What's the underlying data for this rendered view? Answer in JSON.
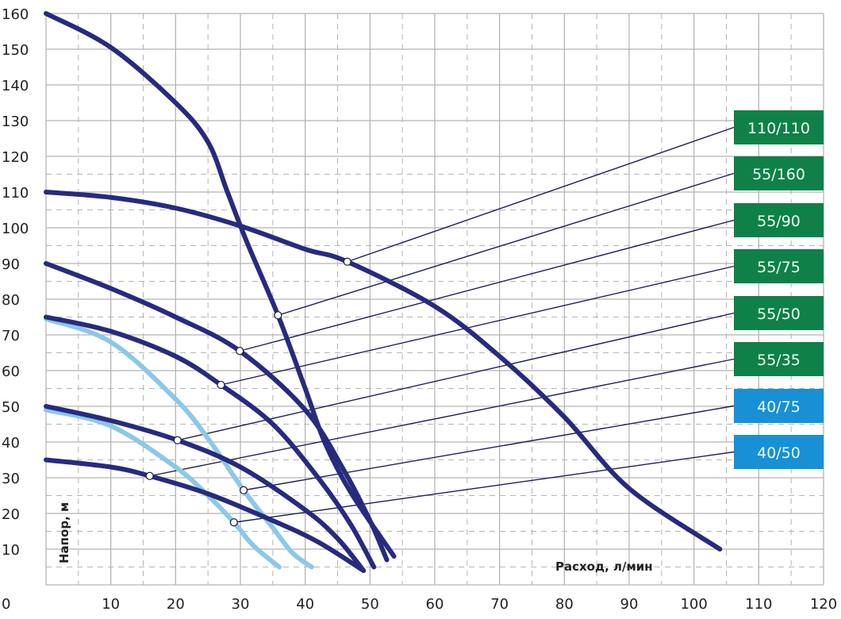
{
  "chart_data": {
    "type": "line",
    "title": "",
    "xlabel": "Расход, л/мин",
    "ylabel": "Напор, м",
    "xlim": [
      0,
      120
    ],
    "ylim": [
      0,
      160
    ],
    "x_ticks": [
      10,
      20,
      30,
      40,
      50,
      60,
      70,
      80,
      90,
      100,
      110,
      120
    ],
    "y_ticks": [
      10,
      20,
      30,
      40,
      50,
      60,
      70,
      80,
      90,
      100,
      110,
      120,
      130,
      140,
      150,
      160
    ],
    "origin_label": "0",
    "grid": true,
    "colors": {
      "dark_curve": "#272b80",
      "light_curve": "#8cc8e8",
      "green_label": "#0f8148",
      "blue_label": "#1790d6",
      "grid": "#b5b5b5"
    },
    "series": [
      {
        "name": "110/110",
        "style": "dark",
        "label_color": "green",
        "marker": [
          46.5,
          90.5
        ],
        "points": [
          [
            0,
            110
          ],
          [
            10,
            108.5
          ],
          [
            20,
            105.5
          ],
          [
            30,
            100.5
          ],
          [
            40,
            94
          ],
          [
            46.5,
            90.5
          ],
          [
            60,
            78
          ],
          [
            70,
            64
          ],
          [
            80,
            47
          ],
          [
            90,
            27
          ],
          [
            104,
            10
          ]
        ]
      },
      {
        "name": "55/160",
        "style": "dark",
        "label_color": "green",
        "marker": [
          35.8,
          75.5
        ],
        "points": [
          [
            0,
            160
          ],
          [
            10,
            150.5
          ],
          [
            20,
            135
          ],
          [
            25,
            124
          ],
          [
            28,
            110
          ],
          [
            31,
            96
          ],
          [
            35.8,
            75.5
          ],
          [
            40,
            55
          ],
          [
            43,
            40
          ],
          [
            47,
            26
          ],
          [
            53.7,
            8
          ]
        ]
      },
      {
        "name": "55/90",
        "style": "dark",
        "label_color": "green",
        "marker": [
          29.9,
          65.5
        ],
        "points": [
          [
            0,
            90
          ],
          [
            10,
            83
          ],
          [
            20,
            75
          ],
          [
            29.9,
            65.5
          ],
          [
            40,
            49
          ],
          [
            46,
            32
          ],
          [
            50,
            18
          ],
          [
            52.6,
            7
          ]
        ]
      },
      {
        "name": "55/75",
        "style": "dark",
        "label_color": "green",
        "marker": [
          27,
          56
        ],
        "points": [
          [
            0,
            75
          ],
          [
            10,
            71
          ],
          [
            20,
            64
          ],
          [
            27,
            56
          ],
          [
            35,
            45
          ],
          [
            42,
            30
          ],
          [
            47,
            17
          ],
          [
            50.6,
            5
          ]
        ]
      },
      {
        "name": "55/50",
        "style": "dark",
        "label_color": "green",
        "marker": [
          20.3,
          40.5
        ],
        "points": [
          [
            0,
            50
          ],
          [
            10,
            46
          ],
          [
            20.3,
            40.5
          ],
          [
            30,
            33
          ],
          [
            40,
            21
          ],
          [
            45,
            13
          ],
          [
            49,
            4
          ]
        ]
      },
      {
        "name": "55/35",
        "style": "dark",
        "label_color": "green",
        "marker": [
          16,
          30.5
        ],
        "points": [
          [
            0,
            35
          ],
          [
            10,
            33
          ],
          [
            16,
            30.5
          ],
          [
            25,
            25.5
          ],
          [
            35,
            18
          ],
          [
            42,
            12
          ],
          [
            49,
            4
          ]
        ]
      },
      {
        "name": "40/75",
        "style": "light",
        "label_color": "blue",
        "marker": [
          30.5,
          26.5
        ],
        "points": [
          [
            0,
            74.5
          ],
          [
            10,
            68
          ],
          [
            20,
            52
          ],
          [
            25,
            41
          ],
          [
            30.5,
            26.5
          ],
          [
            35,
            16
          ],
          [
            38,
            9
          ],
          [
            41,
            5
          ]
        ]
      },
      {
        "name": "40/50",
        "style": "light",
        "label_color": "blue",
        "marker": [
          29,
          17.5
        ],
        "points": [
          [
            0,
            49
          ],
          [
            10,
            44.5
          ],
          [
            20,
            33
          ],
          [
            25,
            25
          ],
          [
            29,
            17.5
          ],
          [
            32,
            11
          ],
          [
            36,
            5
          ]
        ]
      }
    ]
  }
}
